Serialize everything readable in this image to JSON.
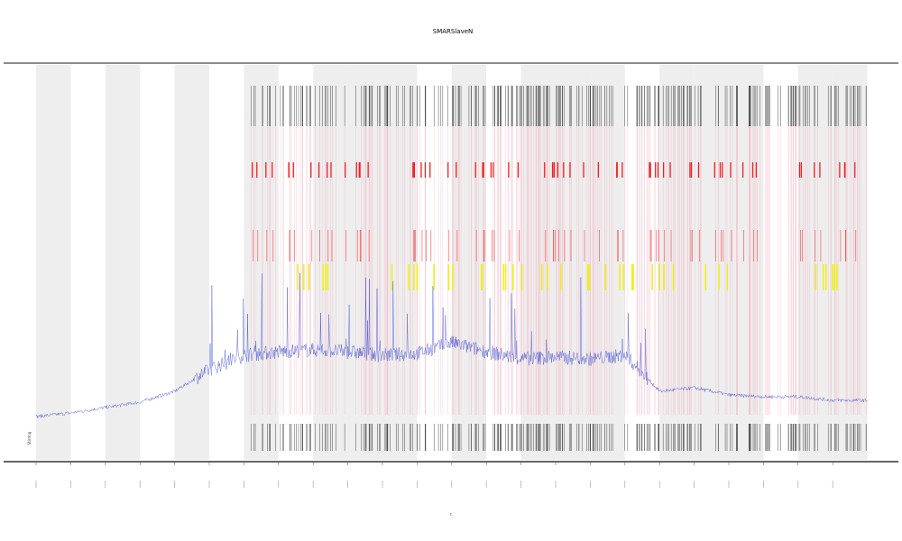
{
  "chart_data": {
    "type": "line",
    "title": "SMARSlaveN",
    "xlabel": "t",
    "ylabel": "",
    "annotation": "Stirring",
    "x_tick_count": 24,
    "shaded_bands": [
      0,
      2,
      4,
      6,
      8,
      9,
      10,
      12,
      14,
      15,
      16,
      18,
      19,
      20,
      22,
      23
    ],
    "event_clusters": [
      {
        "band": 6,
        "red": true,
        "yellow": false
      },
      {
        "band": 7,
        "red": true,
        "yellow": true
      },
      {
        "band": 8,
        "red": true,
        "yellow": true
      },
      {
        "band": 9,
        "red": true,
        "yellow": false
      },
      {
        "band": 10,
        "red": true,
        "yellow": true
      },
      {
        "band": 11,
        "red": true,
        "yellow": true
      },
      {
        "band": 12,
        "red": true,
        "yellow": true
      },
      {
        "band": 13,
        "red": true,
        "yellow": true
      },
      {
        "band": 14,
        "red": true,
        "yellow": true
      },
      {
        "band": 15,
        "red": true,
        "yellow": true
      },
      {
        "band": 16,
        "red": true,
        "yellow": true
      },
      {
        "band": 17,
        "red": true,
        "yellow": true
      },
      {
        "band": 18,
        "red": true,
        "yellow": true
      },
      {
        "band": 19,
        "red": true,
        "yellow": true
      },
      {
        "band": 20,
        "red": true,
        "yellow": false
      },
      {
        "band": 21,
        "red": false,
        "yellow": false
      },
      {
        "band": 22,
        "red": true,
        "yellow": true
      },
      {
        "band": 23,
        "red": true,
        "yellow": true
      }
    ],
    "series": [
      {
        "color": "#3040d0",
        "baseline_y": [
          0.04,
          0.06,
          0.09,
          0.12,
          0.18,
          0.3,
          0.38,
          0.4,
          0.41,
          0.4,
          0.38,
          0.39,
          0.45,
          0.4,
          0.36,
          0.37,
          0.36,
          0.38,
          0.18,
          0.2,
          0.16,
          0.15,
          0.15,
          0.13,
          0.13
        ]
      }
    ],
    "colors": {
      "band": "#eeeeee",
      "line": "#3040d0",
      "red": "#ee2020",
      "yellow": "#f0ee20",
      "axis": "#555555"
    }
  }
}
